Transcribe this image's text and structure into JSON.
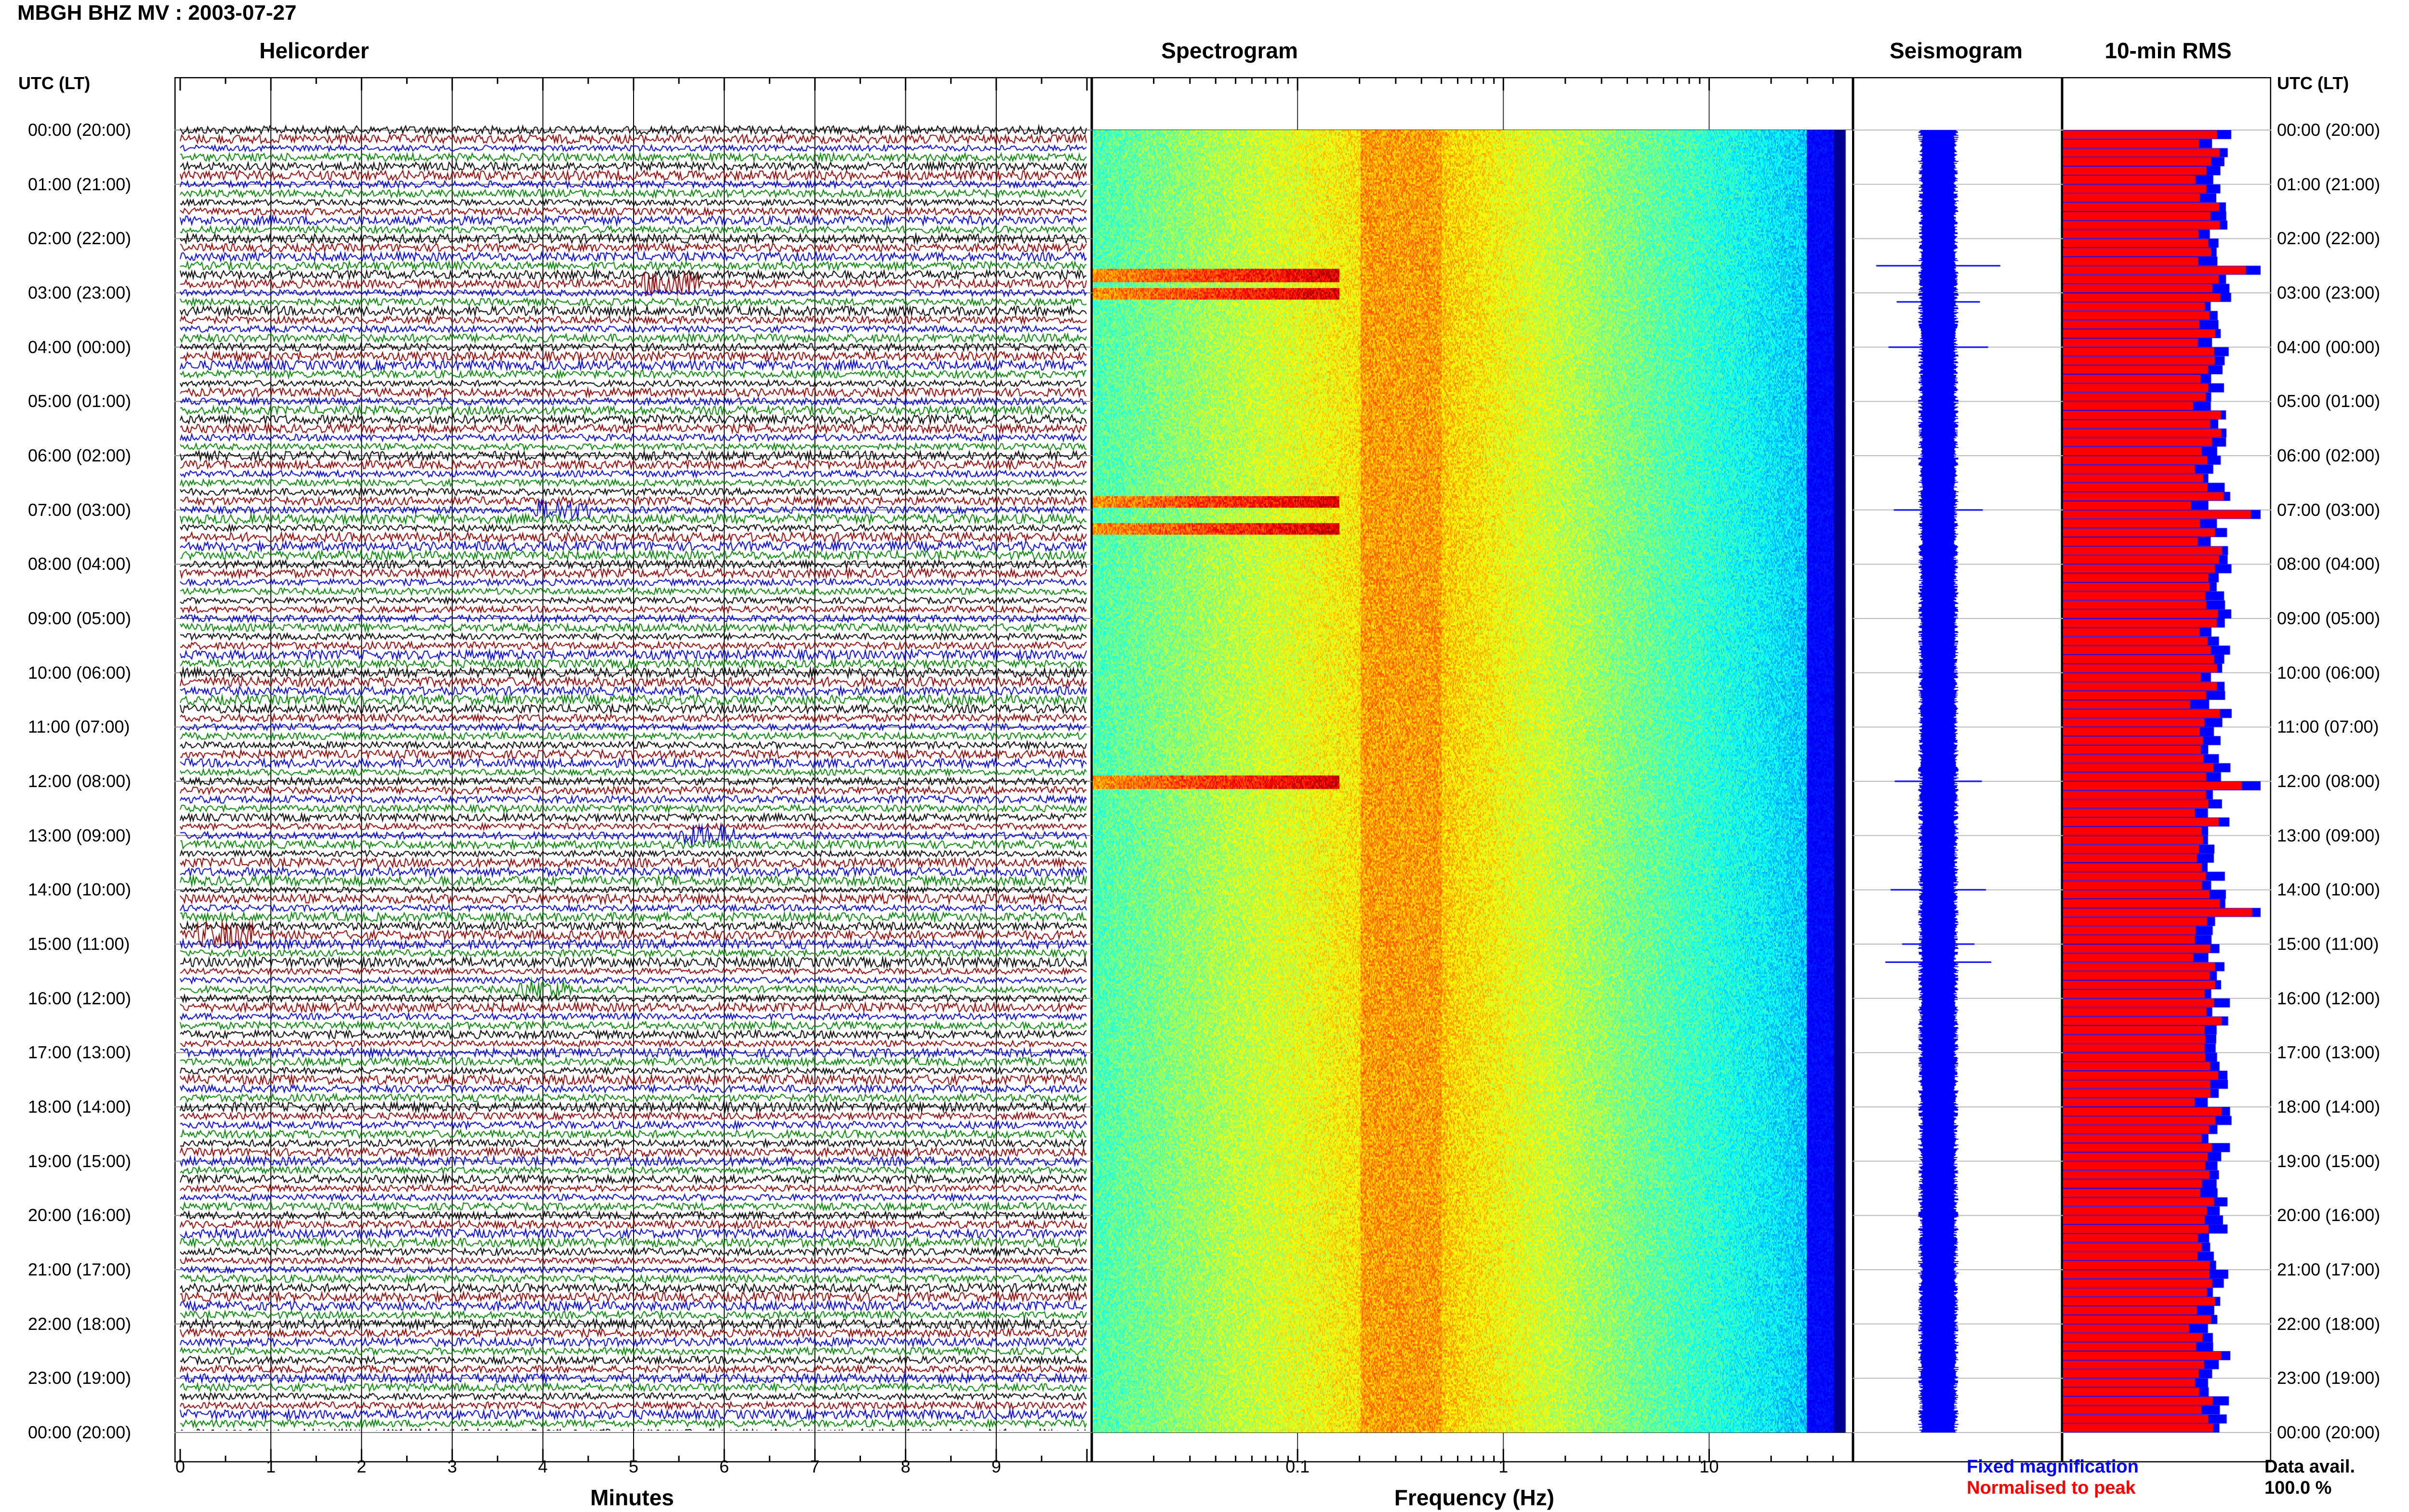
{
  "header": {
    "title": "MBGH BHZ MV : 2003-07-27",
    "panels": [
      "Helicorder",
      "Spectrogram",
      "Seismogram",
      "10-min RMS"
    ],
    "utc_header": "UTC (LT)"
  },
  "time_labels": [
    "00:00 (20:00)",
    "01:00 (21:00)",
    "02:00 (22:00)",
    "03:00 (23:00)",
    "04:00 (00:00)",
    "05:00 (01:00)",
    "06:00 (02:00)",
    "07:00 (03:00)",
    "08:00 (04:00)",
    "09:00 (05:00)",
    "10:00 (06:00)",
    "11:00 (07:00)",
    "12:00 (08:00)",
    "13:00 (09:00)",
    "14:00 (10:00)",
    "15:00 (11:00)",
    "16:00 (12:00)",
    "17:00 (13:00)",
    "18:00 (14:00)",
    "19:00 (15:00)",
    "20:00 (16:00)",
    "21:00 (17:00)",
    "22:00 (18:00)",
    "23:00 (19:00)",
    "00:00 (20:00)"
  ],
  "axes": {
    "minutes_label": "Minutes",
    "minutes_ticks": [
      "0",
      "1",
      "2",
      "3",
      "4",
      "5",
      "6",
      "7",
      "8",
      "9"
    ],
    "frequency_label": "Frequency (Hz)",
    "frequency_ticks": [
      "0.1",
      "1",
      "10"
    ]
  },
  "legend": {
    "fixed": "Fixed magnification",
    "normalised": "Normalised to peak",
    "data_avail_label": "Data avail.",
    "data_avail_value": "100.0 %"
  },
  "colors": {
    "trace_cycle": [
      "#000000",
      "#8b0000",
      "#0000cc",
      "#008000"
    ],
    "fixed_magnification": "#0000ff",
    "normalised_to_peak": "#ff0000"
  },
  "chart_data": [
    {
      "type": "line",
      "title": "Helicorder",
      "xlabel": "Minutes",
      "xlim": [
        0,
        10
      ],
      "ylim_hours_utc": [
        0,
        24
      ],
      "lines_per_hour": 6,
      "events": [
        {
          "utc": "02:50",
          "minute": 5.4
        },
        {
          "utc": "07:00",
          "minute": 4.2
        },
        {
          "utc": "13:00",
          "minute": 5.8
        },
        {
          "utc": "14:50",
          "minute": 0.5
        },
        {
          "utc": "15:50",
          "minute": 4.0
        }
      ]
    },
    {
      "type": "heatmap",
      "title": "Spectrogram",
      "xlabel": "Frequency (Hz)",
      "xscale": "log",
      "xlim": [
        0.01,
        50
      ],
      "ylim_hours_utc": [
        0,
        24
      ],
      "dominant_band_hz": [
        0.2,
        0.5
      ],
      "energetic_rows_utc": [
        "02:40",
        "03:00",
        "06:50",
        "07:20",
        "12:00"
      ]
    },
    {
      "type": "line",
      "title": "Seismogram",
      "ylim_hours_utc": [
        0,
        24
      ],
      "spikes_utc": [
        "02:30",
        "03:10",
        "04:00",
        "07:00",
        "12:00",
        "14:00",
        "15:00",
        "15:20"
      ]
    },
    {
      "type": "bar",
      "title": "10-min RMS",
      "ylim_hours_utc": [
        0,
        24
      ],
      "bars_per_hour": 6,
      "series": [
        {
          "name": "Fixed magnification"
        },
        {
          "name": "Normalised to peak"
        }
      ],
      "peaks_utc": [
        "02:30",
        "07:00",
        "12:00",
        "14:20"
      ]
    }
  ]
}
